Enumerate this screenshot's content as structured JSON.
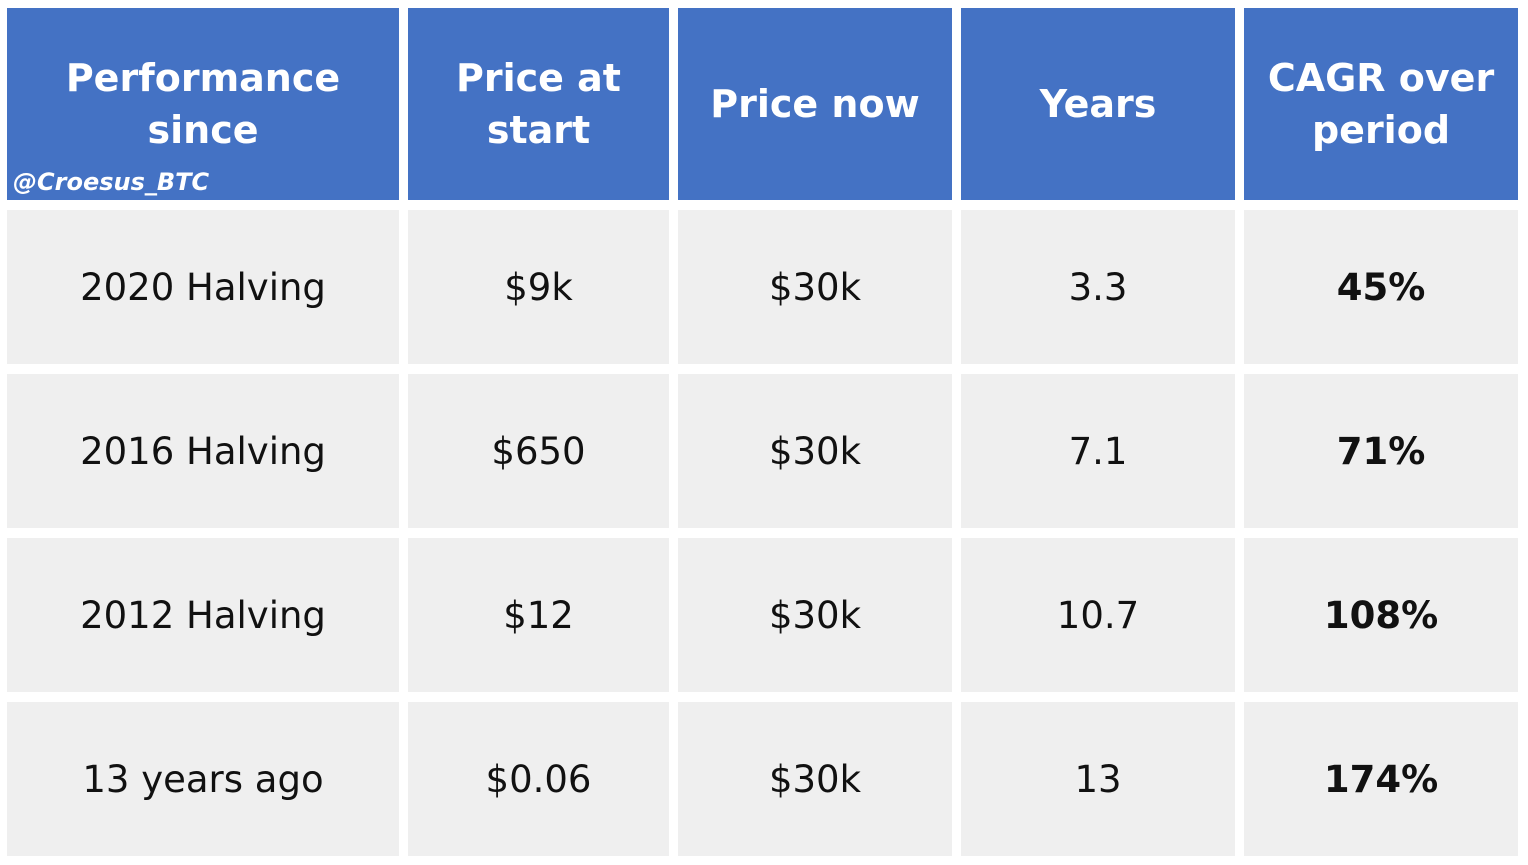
{
  "chart_data": {
    "type": "table",
    "watermark": "@Croesus_BTC",
    "columns": [
      "Performance since",
      "Price at start",
      "Price now",
      "Years",
      "CAGR over period"
    ],
    "rows": [
      [
        "2020 Halving",
        "$9k",
        "$30k",
        "3.3",
        "45%"
      ],
      [
        "2016 Halving",
        "$650",
        "$30k",
        "7.1",
        "71%"
      ],
      [
        "2012 Halving",
        "$12",
        "$30k",
        "10.7",
        "108%"
      ],
      [
        "13 years ago",
        "$0.06",
        "$30k",
        "13",
        "174%"
      ]
    ],
    "colors": {
      "header_background": "#4472c4",
      "header_text": "#ffffff",
      "body_background": "#efefef",
      "body_text": "#111111"
    }
  }
}
